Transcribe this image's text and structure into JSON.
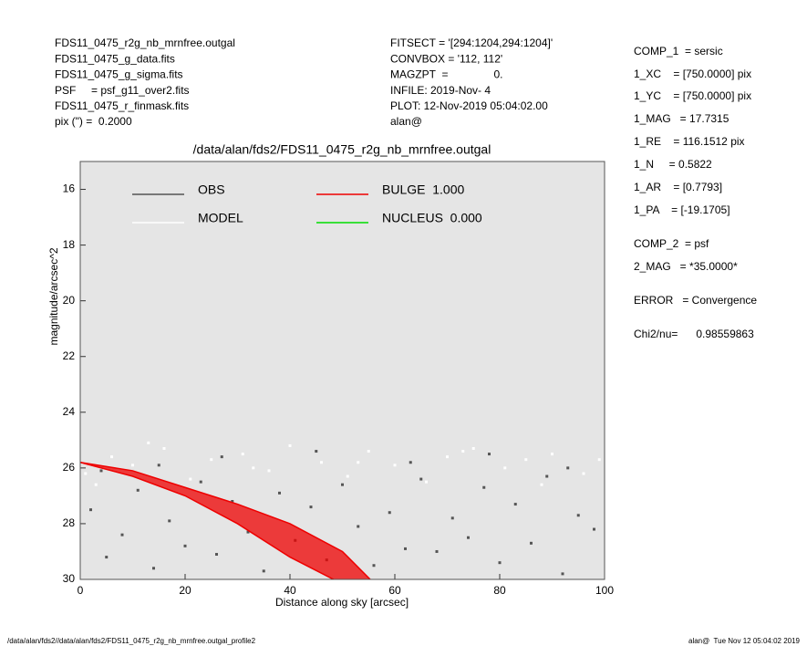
{
  "info_left": [
    "FDS11_0475_r2g_nb_mrnfree.outgal",
    "FDS11_0475_g_data.fits",
    "FDS11_0475_g_sigma.fits",
    "PSF     = psf_g11_over2.fits",
    "FDS11_0475_r_finmask.fits",
    "pix (\") =  0.2000"
  ],
  "info_middle": [
    "FITSECT = '[294:1204,294:1204]'",
    "CONVBOX = '112, 112'",
    "MAGZPT  =               0.",
    "INFILE: 2019-Nov- 4",
    "PLOT: 12-Nov-2019 05:04:02.00",
    "alan@"
  ],
  "info_right": [
    "COMP_1  = sersic",
    "1_XC    = [750.0000] pix",
    "1_YC    = [750.0000] pix",
    "1_MAG   = 17.7315",
    "1_RE    = 116.1512 pix",
    "1_N     = 0.5822",
    "1_AR    = [0.7793]",
    "1_PA    = [-19.1705]",
    "COMP_2  = psf",
    "2_MAG   = *35.0000*",
    "ERROR   = Convergence",
    "Chi2/nu=      0.98559863"
  ],
  "footer_left": "/data/alan/fds2//data/alan/fds2/FDS11_0475_r2g_nb_mrnfree.outgal_profile2",
  "footer_right": "alan@  Tue Nov 12 05:04:02 2019",
  "chart_data": {
    "type": "scatter",
    "title": "/data/alan/fds2/FDS11_0475_r2g_nb_mrnfree.outgal",
    "x_label": "Distance along sky [arcsec]",
    "y_label": "magnitude/arcsec^2",
    "xlim": [
      0,
      100
    ],
    "ylim": [
      30,
      15
    ],
    "y_inverted": true,
    "xticks": [
      0,
      20,
      40,
      60,
      80,
      100
    ],
    "yticks": [
      16,
      18,
      20,
      22,
      24,
      26,
      28,
      30
    ],
    "series": [
      {
        "name": "OBS",
        "color": "#555555",
        "mode": "points",
        "x": [
          2,
          5,
          8,
          11,
          14,
          17,
          20,
          23,
          26,
          29,
          32,
          35,
          38,
          41,
          44,
          47,
          50,
          53,
          56,
          59,
          62,
          65,
          68,
          71,
          74,
          77,
          80,
          83,
          86,
          89,
          92,
          95,
          98,
          4,
          15,
          27,
          45,
          63,
          78,
          93
        ],
        "y": [
          27.5,
          29.2,
          28.4,
          26.8,
          29.6,
          27.9,
          28.8,
          26.5,
          29.1,
          27.2,
          28.3,
          29.7,
          26.9,
          28.6,
          27.4,
          29.3,
          26.6,
          28.1,
          29.5,
          27.6,
          28.9,
          26.4,
          29.0,
          27.8,
          28.5,
          26.7,
          29.4,
          27.3,
          28.7,
          26.3,
          29.8,
          27.7,
          28.2,
          26.1,
          25.9,
          25.6,
          25.4,
          25.8,
          25.5,
          26.0
        ]
      },
      {
        "name": "MODEL",
        "color": "#ffffff",
        "mode": "points",
        "x": [
          1,
          6,
          10,
          16,
          21,
          25,
          31,
          36,
          40,
          46,
          51,
          55,
          60,
          66,
          70,
          75,
          81,
          85,
          90,
          96,
          3,
          13,
          33,
          53,
          73,
          88,
          99
        ],
        "y": [
          26.2,
          25.6,
          25.9,
          25.3,
          26.4,
          25.7,
          25.5,
          26.1,
          25.2,
          25.8,
          26.3,
          25.4,
          25.9,
          26.5,
          25.6,
          25.3,
          26.0,
          25.7,
          25.5,
          26.2,
          26.6,
          25.1,
          26.0,
          25.8,
          25.4,
          26.6,
          25.7
        ]
      },
      {
        "name": "BULGE  1.000",
        "color": "#ee0000",
        "mode": "band",
        "x": [
          0,
          10,
          20,
          30,
          40,
          50,
          55.3
        ],
        "y": [
          25.8,
          26.1,
          26.7,
          27.3,
          28.0,
          29.0,
          30.0
        ],
        "x2": [
          0,
          10,
          20,
          30,
          40,
          48.3
        ],
        "y2": [
          25.8,
          26.3,
          27.0,
          28.0,
          29.2,
          30.0
        ]
      },
      {
        "name": "NUCLEUS  0.000",
        "color": "#00dd00",
        "mode": "line",
        "x": [],
        "y": []
      }
    ]
  }
}
